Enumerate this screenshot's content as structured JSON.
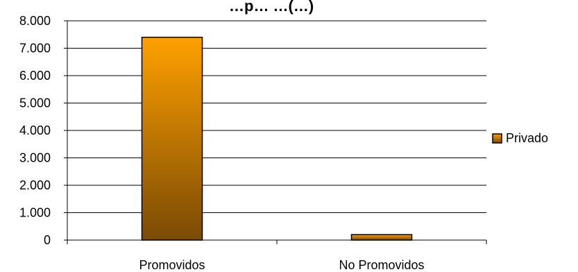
{
  "chart_data": {
    "type": "bar",
    "title": "…p… …(…)",
    "categories": [
      "Promovidos",
      "No Promovidos"
    ],
    "series": [
      {
        "name": "Privado",
        "values": [
          7400,
          200
        ],
        "color": "#f0a000"
      }
    ],
    "y_ticks": [
      "0",
      "1.000",
      "2.000",
      "3.000",
      "4.000",
      "5.000",
      "6.000",
      "7.000",
      "8.000"
    ],
    "ylim": [
      0,
      8000
    ],
    "grid": true,
    "legend_position": "right",
    "colors": {
      "bar_top": "#ffa000",
      "bar_bottom": "#7a4a05",
      "grid": "#000000"
    }
  }
}
